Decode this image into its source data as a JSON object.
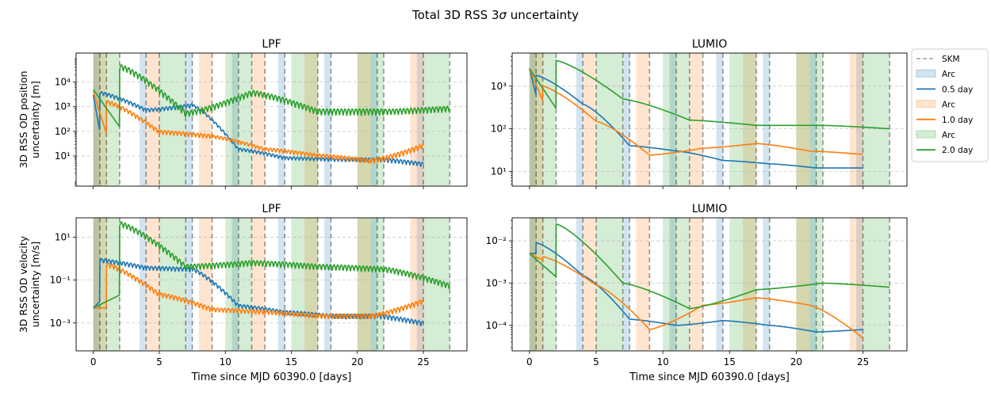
{
  "figure": {
    "suptitle_prefix": "Total 3D RSS 3",
    "suptitle_sigma": "σ",
    "suptitle_suffix": " uncertainty"
  },
  "legend": {
    "placement": "outside-right",
    "entries": [
      {
        "label": "SKM",
        "kind": "dashed-line",
        "color": "#a0a0a0"
      },
      {
        "label": "Arc",
        "kind": "patch",
        "color": "#1f77b4"
      },
      {
        "label": "0.5 day",
        "kind": "line",
        "color": "#1f77b4"
      },
      {
        "label": "Arc",
        "kind": "patch",
        "color": "#ff7f0e"
      },
      {
        "label": "1.0 day",
        "kind": "line",
        "color": "#ff7f0e"
      },
      {
        "label": "Arc",
        "kind": "patch",
        "color": "#2ca02c"
      },
      {
        "label": "2.0 day",
        "kind": "line",
        "color": "#2ca02c"
      }
    ]
  },
  "chart_data": {
    "type": "line",
    "y_scale": "log",
    "grid": "horizontal-dashed",
    "x_range": [
      -1.3,
      28.3
    ],
    "x_ticks": [
      0,
      5,
      10,
      15,
      20,
      25
    ],
    "xlabel": "Time since MJD 60390.0 [days]",
    "series_colors": {
      "0.5 day": "#1f77b4",
      "1.0 day": "#ff7f0e",
      "2.0 day": "#2ca02c"
    },
    "arcs": {
      "0.5 day": [
        [
          0,
          0.5
        ],
        [
          3.5,
          4
        ],
        [
          7,
          7.5
        ],
        [
          10.5,
          11
        ],
        [
          14,
          14.5
        ],
        [
          17.5,
          18
        ],
        [
          21,
          21.5
        ],
        [
          24.5,
          25
        ]
      ],
      "1.0 day": [
        [
          0,
          1
        ],
        [
          4,
          5
        ],
        [
          8,
          9
        ],
        [
          12,
          13
        ],
        [
          16,
          17
        ],
        [
          20,
          21
        ],
        [
          24,
          25
        ]
      ],
      "2.0 day": [
        [
          0,
          2
        ],
        [
          5,
          7
        ],
        [
          10,
          12
        ],
        [
          15,
          17
        ],
        [
          20,
          22
        ],
        [
          25,
          27
        ]
      ]
    },
    "skm_times": [
      0.5,
      1,
      2,
      4,
      5,
      7,
      7.5,
      9,
      11,
      12,
      13,
      14.5,
      17,
      18,
      21.5,
      22,
      25,
      27
    ],
    "panels": [
      {
        "id": "lpf-pos",
        "title": "LPF",
        "ylabel": [
          "3D RSS OD position",
          "uncertainty [m]"
        ],
        "ylim": [
          0.6,
          150000
        ],
        "yticks": [
          1,
          2,
          3,
          4
        ],
        "yticks_minor": true,
        "series": {
          "0.5 day": {
            "init": 3000,
            "dt": [
              100,
              3500
            ],
            "peak": [
              700,
              1100,
              18,
              8,
              7,
              7,
              4.5,
              4
            ],
            "noise": [
              0.35,
              0.35,
              0.25,
              0.3,
              0.3,
              0.35,
              0.4,
              0.4
            ]
          },
          "1.0 day": {
            "init": 4000,
            "dt": [
              80,
              1500
            ],
            "peak": [
              90,
              60,
              18,
              10,
              6,
              25,
              40
            ],
            "noise": [
              0.4,
              0.4,
              0.3,
              0.35,
              0.4,
              0.5,
              0.5
            ]
          },
          "2.0 day": {
            "init": 5000,
            "dt": [
              150,
              40000
            ],
            "peak": [
              500,
              3500,
              600,
              600,
              800,
              80
            ],
            "noise": [
              0.55,
              0.55,
              0.55,
              0.6,
              0.55,
              0.5
            ]
          }
        }
      },
      {
        "id": "lumio-pos",
        "title": "LUMIO",
        "ylabel": [],
        "ylim": [
          4.5,
          6000
        ],
        "yticks": [
          1,
          2,
          3
        ],
        "yticks_minor": true,
        "series": {
          "0.5 day": {
            "init": 2600,
            "dt": [
              600,
              1800
            ],
            "peak": [
              380,
              40,
              30,
              18,
              15,
              12,
              12
            ],
            "noise": [
              0,
              0,
              0,
              0,
              0,
              0,
              0
            ]
          },
          "1.0 day": {
            "init": 2600,
            "dt": [
              450,
              1000
            ],
            "peak": [
              150,
              24,
              35,
              45,
              30,
              25
            ],
            "noise": [
              0,
              0,
              0,
              0,
              0,
              0
            ]
          },
          "2.0 day": {
            "init": 2600,
            "dt": [
              300,
              4000
            ],
            "peak": [
              500,
              160,
              120,
              120,
              100
            ],
            "noise": [
              0,
              0,
              0,
              0,
              0
            ]
          }
        }
      },
      {
        "id": "lpf-vel",
        "title": "LPF",
        "ylabel": [
          "3D RSS OD velocity",
          "uncertainty [m/s]"
        ],
        "ylim": [
          5e-05,
          80
        ],
        "yticks": [
          -3,
          -1,
          1
        ],
        "yticks_minor": false,
        "series": {
          "0.5 day": {
            "init": 0.005,
            "dt": [
              0.01,
              0.8
            ],
            "peak": [
              0.35,
              0.3,
              0.006,
              0.003,
              0.002,
              0.002,
              0.0009,
              0.0006
            ],
            "noise": [
              0.45,
              0.45,
              0.4,
              0.4,
              0.45,
              0.5,
              0.5,
              0.5
            ]
          },
          "1.0 day": {
            "init": 0.005,
            "dt": [
              0.005,
              0.5
            ],
            "peak": [
              0.02,
              0.004,
              0.003,
              0.002,
              0.002,
              0.01,
              0.01
            ],
            "noise": [
              0.5,
              0.5,
              0.45,
              0.45,
              0.5,
              0.55,
              0.55
            ]
          },
          "2.0 day": {
            "init": 0.005,
            "dt": [
              0.02,
              40
            ],
            "peak": [
              0.4,
              0.6,
              0.4,
              0.3,
              0.05,
              0.02
            ],
            "noise": [
              0.6,
              0.6,
              0.6,
              0.6,
              0.6,
              0.55
            ]
          }
        }
      },
      {
        "id": "lumio-vel",
        "title": "LUMIO",
        "ylabel": [],
        "ylim": [
          2.5e-05,
          0.035
        ],
        "yticks": [
          -4,
          -3,
          -2
        ],
        "yticks_minor": true,
        "series": {
          "0.5 day": {
            "init": 0.005,
            "dt": [
              0.005,
              0.009
            ],
            "peak": [
              0.0015,
              0.00014,
              0.0001,
              0.00013,
              0.0001,
              7e-05,
              8e-05
            ],
            "noise": [
              0,
              0,
              0,
              0,
              0,
              0,
              0
            ]
          },
          "1.0 day": {
            "init": 0.005,
            "dt": [
              0.0035,
              0.0042
            ],
            "peak": [
              0.0009,
              8e-05,
              0.0003,
              0.00045,
              0.0003,
              5e-05
            ],
            "noise": [
              0,
              0,
              0,
              0,
              0,
              0
            ]
          },
          "2.0 day": {
            "init": 0.005,
            "dt": [
              0.0014,
              0.025
            ],
            "peak": [
              0.001,
              0.00025,
              0.0007,
              0.001,
              0.0008
            ],
            "noise": [
              0,
              0,
              0,
              0,
              0
            ]
          }
        }
      }
    ]
  }
}
